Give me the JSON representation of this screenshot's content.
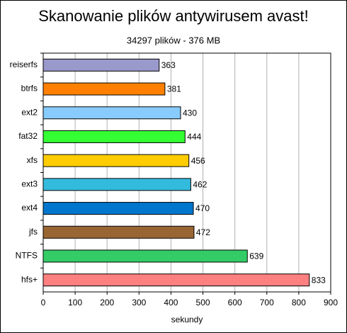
{
  "chart_data": {
    "type": "bar",
    "orientation": "horizontal",
    "title": "Skanowanie plików antywirusem avast!",
    "subtitle": "34297 plików - 376 MB",
    "xlabel": "sekundy",
    "categories": [
      "reiserfs",
      "btrfs",
      "ext2",
      "fat32",
      "xfs",
      "ext3",
      "ext4",
      "jfs",
      "NTFS",
      "hfs+"
    ],
    "values": [
      363,
      381,
      430,
      444,
      456,
      462,
      470,
      472,
      639,
      833
    ],
    "colors": [
      "#9999cc",
      "#ff8000",
      "#88ccff",
      "#33ff33",
      "#ffcc00",
      "#33bbdd",
      "#0077cc",
      "#996633",
      "#33cc66",
      "#ff8080"
    ],
    "xlim": [
      0,
      900
    ],
    "xticks": [
      0,
      100,
      200,
      300,
      400,
      500,
      600,
      700,
      800,
      900
    ],
    "grid": true
  }
}
